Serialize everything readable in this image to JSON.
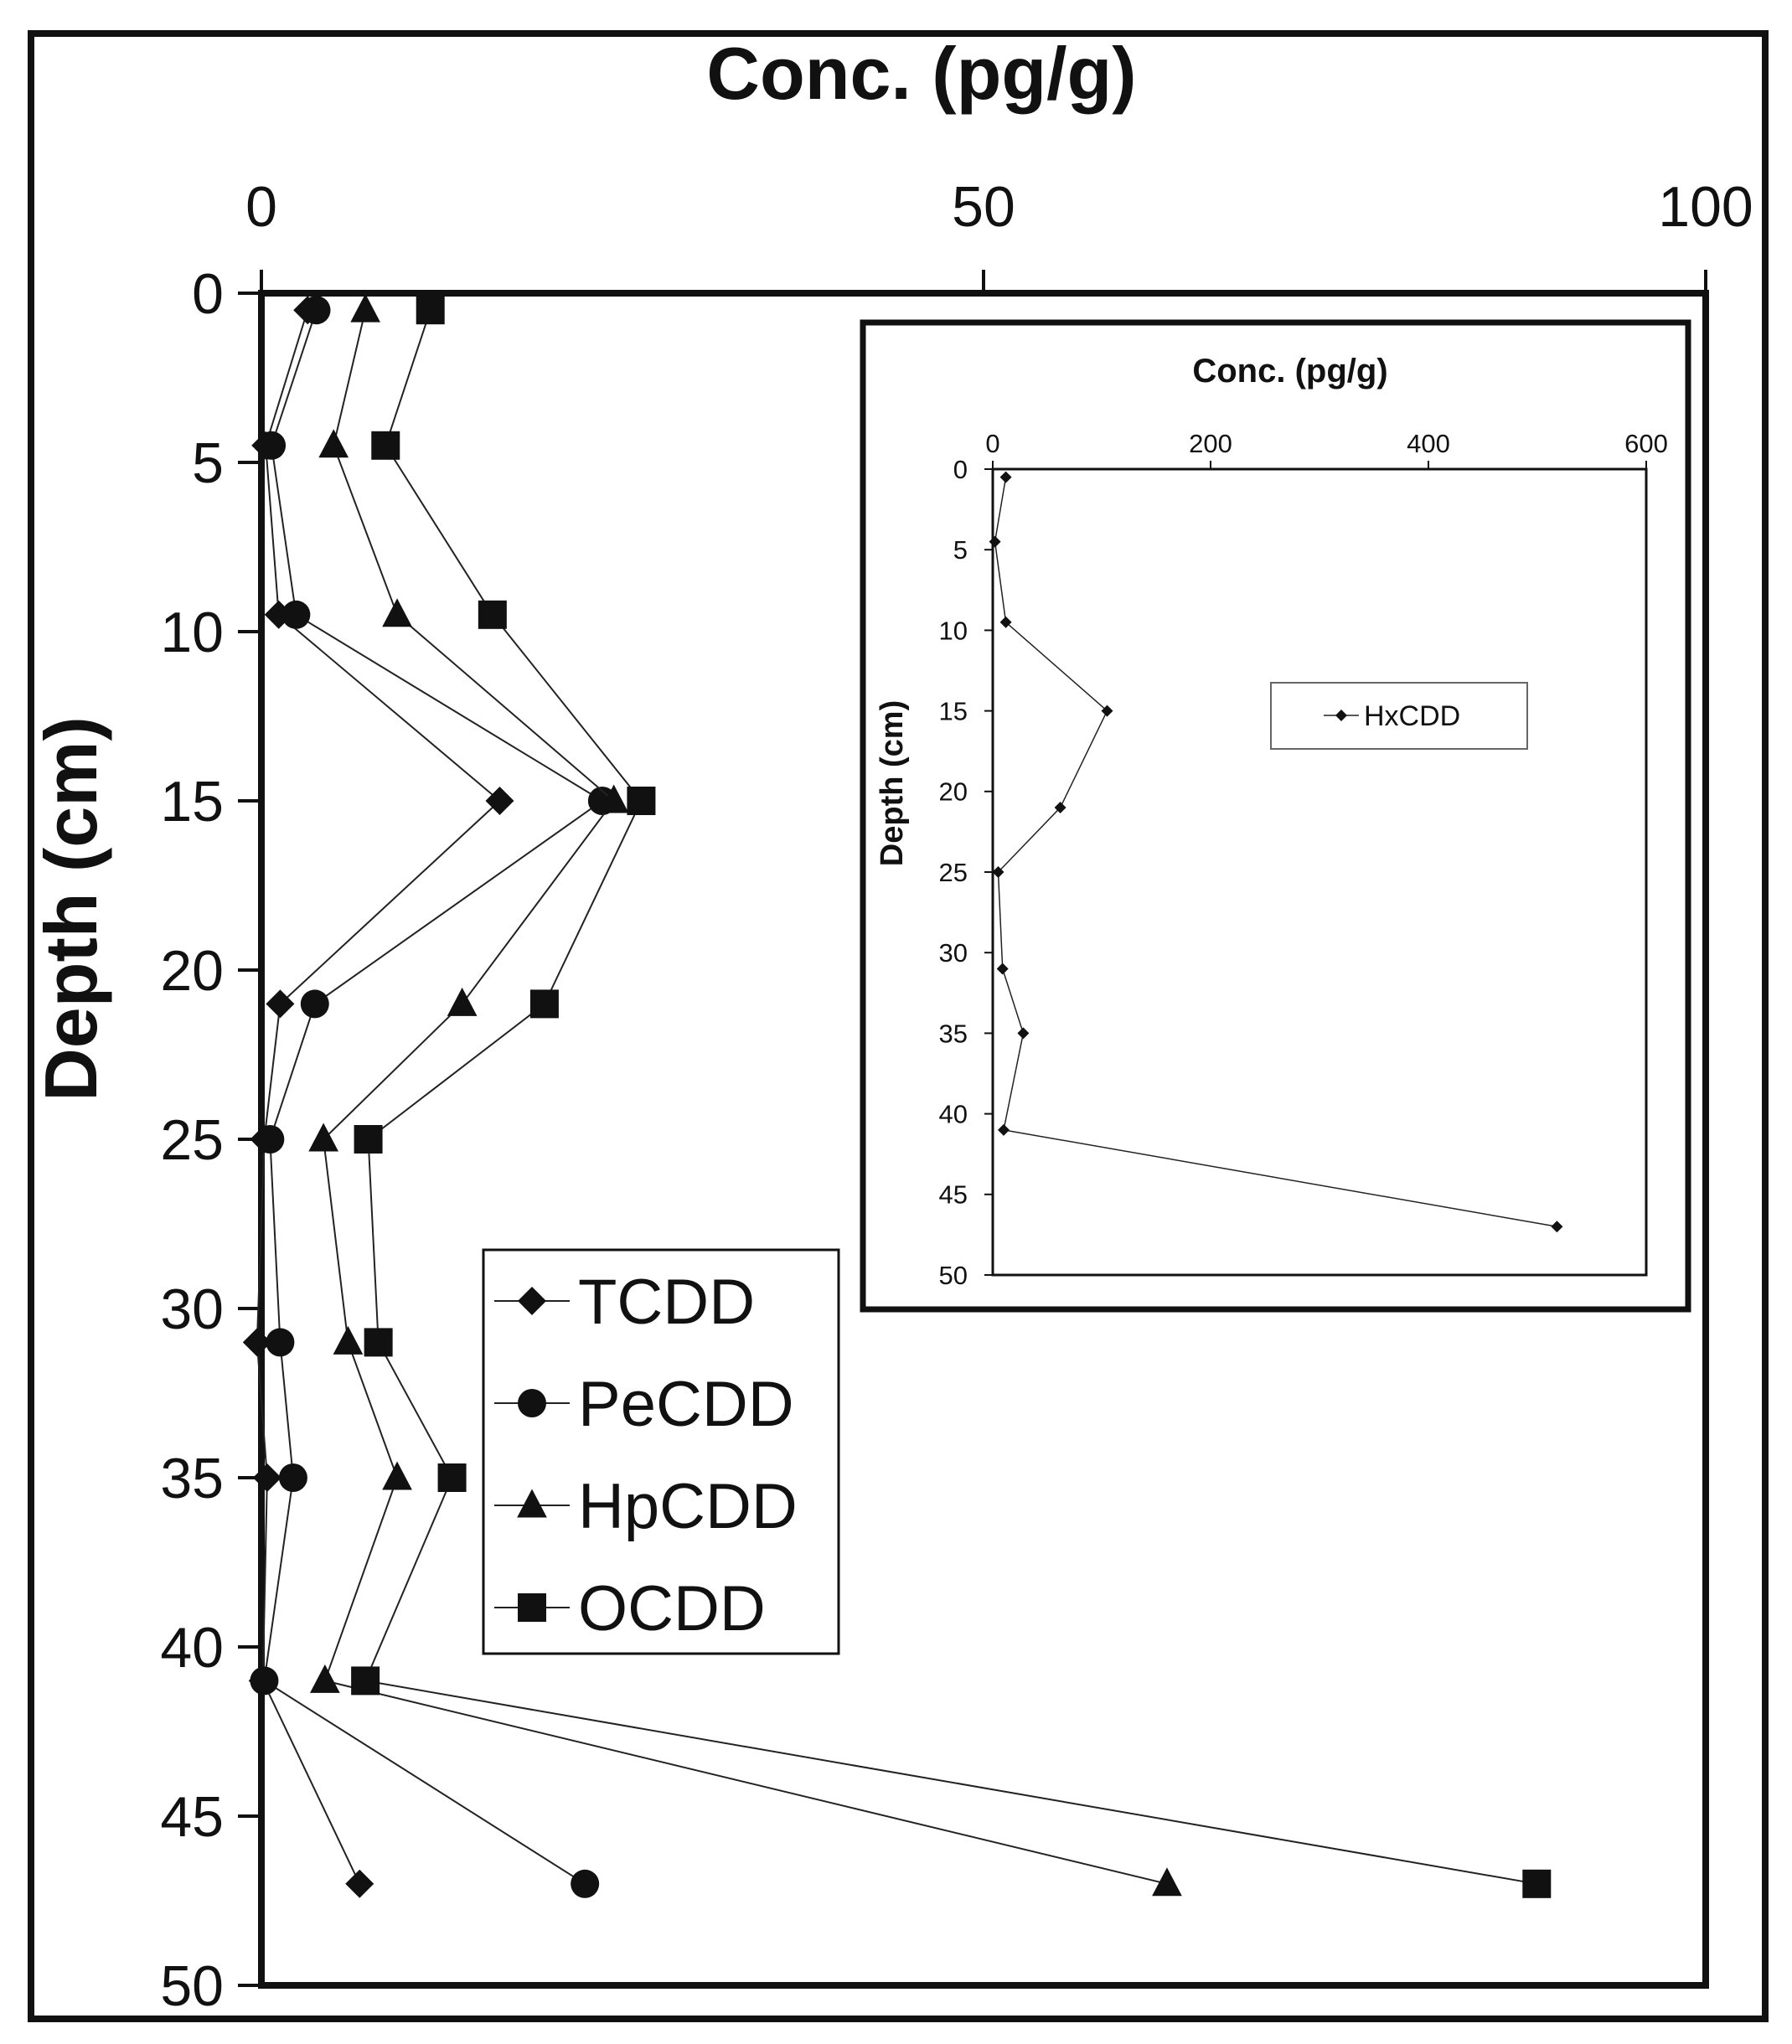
{
  "chart_data": [
    {
      "type": "scatter",
      "mode": "lines+markers",
      "title": "",
      "xlabel": "Conc. (pg/g)",
      "ylabel": "Depth (cm)",
      "xlim": [
        0,
        100
      ],
      "ylim": [
        0,
        50
      ],
      "x_axis_position": "top",
      "y_axis_reversed": true,
      "grid": false,
      "x_ticks": [
        "0",
        "50",
        "100"
      ],
      "y_ticks": [
        "0",
        "5",
        "10",
        "15",
        "20",
        "25",
        "30",
        "35",
        "40",
        "45",
        "50"
      ],
      "legend": {
        "position": "lower-center",
        "entries": [
          "TCDD",
          "PeCDD",
          "HpCDD",
          "OCDD"
        ]
      },
      "depth": [
        0.5,
        4.5,
        9.5,
        15,
        21,
        25,
        31,
        35,
        41,
        47
      ],
      "series": [
        {
          "name": "TCDD",
          "marker": "diamond",
          "x": [
            3.2,
            0.3,
            1.2,
            16.5,
            1.3,
            0.2,
            -0.3,
            0.4,
            0.1,
            6.8
          ]
        },
        {
          "name": "PeCDD",
          "marker": "circle",
          "x": [
            3.8,
            0.7,
            2.4,
            23.6,
            3.7,
            0.6,
            1.3,
            2.2,
            0.2,
            22.4
          ]
        },
        {
          "name": "HpCDD",
          "marker": "triangle",
          "x": [
            7.2,
            5.0,
            9.4,
            24.4,
            13.9,
            4.3,
            6.0,
            9.4,
            4.4,
            62.7
          ]
        },
        {
          "name": "OCDD",
          "marker": "square",
          "x": [
            11.7,
            8.6,
            16.0,
            26.3,
            19.6,
            7.4,
            8.1,
            13.2,
            7.2,
            88.3
          ]
        }
      ]
    },
    {
      "type": "scatter",
      "mode": "lines+markers",
      "title": "",
      "inset": true,
      "xlabel": "Conc. (pg/g)",
      "ylabel": "Depth (cm)",
      "xlim": [
        0,
        600
      ],
      "ylim": [
        0,
        50
      ],
      "x_axis_position": "top",
      "y_axis_reversed": true,
      "grid": false,
      "x_ticks": [
        "0",
        "200",
        "400",
        "600"
      ],
      "y_ticks": [
        "0",
        "5",
        "10",
        "15",
        "20",
        "25",
        "30",
        "35",
        "40",
        "45",
        "50"
      ],
      "legend": {
        "position": "upper-right",
        "entries": [
          "HxCDD"
        ]
      },
      "depth": [
        0.5,
        4.5,
        9.5,
        15,
        21,
        25,
        31,
        35,
        41,
        47
      ],
      "series": [
        {
          "name": "HxCDD",
          "marker": "diamond",
          "x": [
            12,
            2,
            12,
            105,
            62,
            5,
            9,
            28,
            10,
            518
          ]
        }
      ]
    }
  ]
}
